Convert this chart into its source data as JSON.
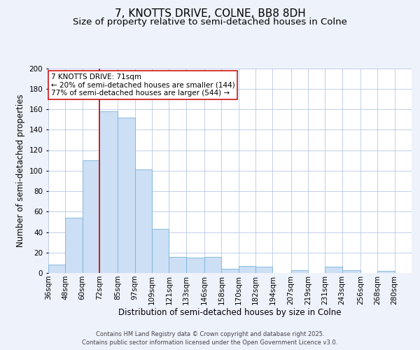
{
  "title": "7, KNOTTS DRIVE, COLNE, BB8 8DH",
  "subtitle": "Size of property relative to semi-detached houses in Colne",
  "xlabel": "Distribution of semi-detached houses by size in Colne",
  "ylabel": "Number of semi-detached properties",
  "bin_labels": [
    "36sqm",
    "48sqm",
    "60sqm",
    "72sqm",
    "85sqm",
    "97sqm",
    "109sqm",
    "121sqm",
    "133sqm",
    "146sqm",
    "158sqm",
    "170sqm",
    "182sqm",
    "194sqm",
    "207sqm",
    "219sqm",
    "231sqm",
    "243sqm",
    "256sqm",
    "268sqm",
    "280sqm"
  ],
  "bin_edges": [
    36,
    48,
    60,
    72,
    85,
    97,
    109,
    121,
    133,
    146,
    158,
    170,
    182,
    194,
    207,
    219,
    231,
    243,
    256,
    268,
    280,
    292
  ],
  "bar_heights": [
    8,
    54,
    110,
    158,
    152,
    101,
    43,
    16,
    15,
    16,
    4,
    7,
    6,
    0,
    3,
    0,
    6,
    3,
    0,
    2,
    0
  ],
  "bar_color": "#ccdff5",
  "bar_edge_color": "#7ab4d8",
  "vline_x": 72,
  "vline_color": "#cc0000",
  "annotation_text": "7 KNOTTS DRIVE: 71sqm\n← 20% of semi-detached houses are smaller (144)\n77% of semi-detached houses are larger (544) →",
  "annotation_box_color": "#ffffff",
  "annotation_box_edge_color": "#cc0000",
  "ylim": [
    0,
    200
  ],
  "yticks": [
    0,
    20,
    40,
    60,
    80,
    100,
    120,
    140,
    160,
    180,
    200
  ],
  "background_color": "#eef2fb",
  "plot_bg_color": "#ffffff",
  "grid_color": "#b8c8e8",
  "footer_line1": "Contains HM Land Registry data © Crown copyright and database right 2025.",
  "footer_line2": "Contains public sector information licensed under the Open Government Licence v3.0.",
  "title_fontsize": 11,
  "subtitle_fontsize": 9.5,
  "label_fontsize": 8.5,
  "tick_fontsize": 7.5,
  "annotation_fontsize": 7.5,
  "footer_fontsize": 6
}
